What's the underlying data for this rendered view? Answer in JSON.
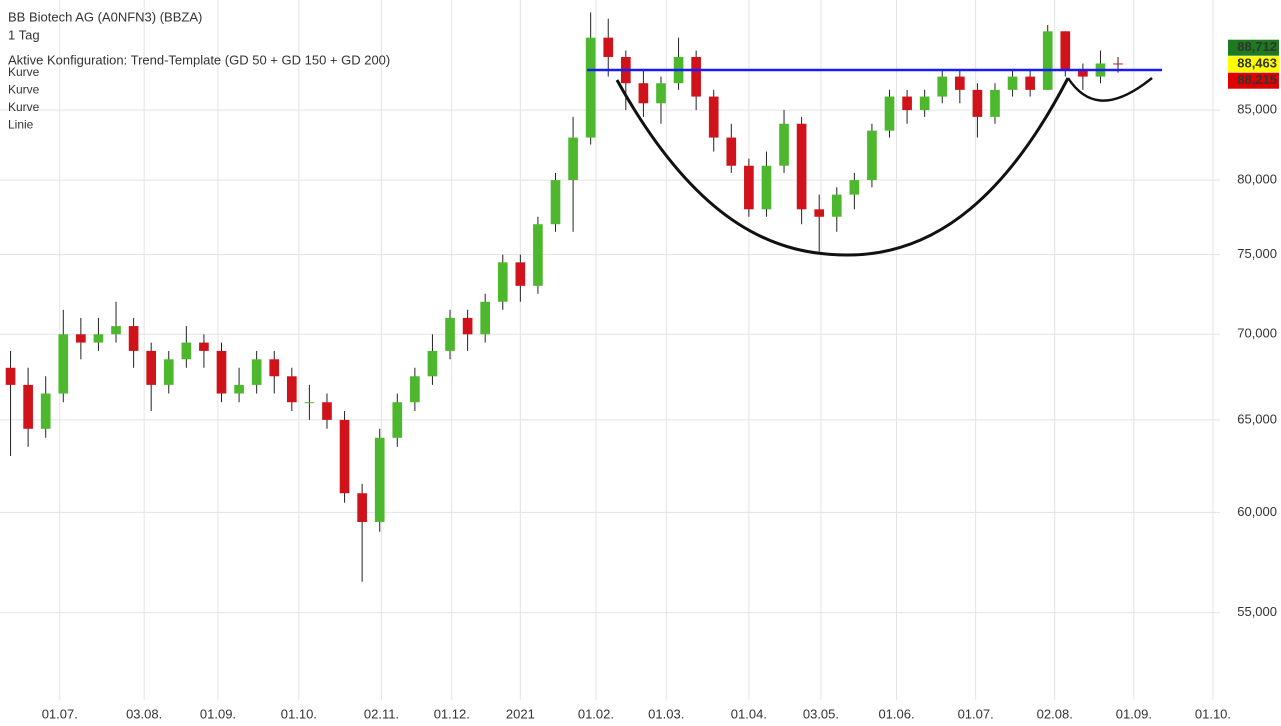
{
  "chart_data": {
    "type": "candlestick",
    "title": "BB Biotech AG (A0NFN3) (BBZA)",
    "subtitle": "1 Tag",
    "config_label": "Aktive Konfiguration: Trend-Template (GD 50 + GD 150 + GD 200)",
    "legend": [
      {
        "name": "Kurve",
        "color": "#000000"
      },
      {
        "name": "Kurve",
        "color": "#000000"
      },
      {
        "name": "Kurve",
        "color": "#000000"
      },
      {
        "name": "Linie",
        "color": "#1a1aff"
      }
    ],
    "log_scale": true,
    "grid": true,
    "up_color": "#4db82e",
    "down_color": "#d0131b",
    "categories": [
      null,
      null,
      null,
      null,
      null,
      null,
      null,
      null,
      null,
      null,
      null,
      null,
      null,
      null,
      null,
      null,
      null,
      null,
      null,
      null,
      null,
      null,
      null,
      null,
      null,
      null,
      null,
      null,
      null,
      null,
      null,
      null,
      null,
      null,
      null,
      null,
      null,
      null,
      null,
      null,
      null,
      null,
      null,
      null,
      null,
      null,
      null,
      null,
      null,
      null,
      null,
      null,
      null,
      null,
      null,
      null,
      null,
      null,
      null,
      null,
      null,
      null,
      null,
      null
    ],
    "open": [
      68000,
      67000,
      64500,
      66500,
      70000,
      69500,
      70000,
      70500,
      69000,
      67000,
      68500,
      69500,
      69000,
      66500,
      67000,
      68500,
      67500,
      66000,
      66000,
      65000,
      61000,
      59500,
      64000,
      66000,
      67500,
      69000,
      71000,
      70000,
      72000,
      74500,
      73000,
      77000,
      80000,
      83000,
      90500,
      89000,
      87000,
      85500,
      87000,
      89000,
      86000,
      83000,
      81000,
      78000,
      81000,
      84000,
      78000,
      77500,
      79000,
      80000,
      83500,
      86000,
      85000,
      86000,
      87500,
      86500,
      84500,
      86500,
      87500,
      86500,
      91000,
      88000,
      87500,
      88500
    ],
    "high": [
      69000,
      68000,
      67500,
      71500,
      71000,
      71000,
      72000,
      71000,
      69500,
      69000,
      70500,
      70000,
      69500,
      68000,
      69000,
      69000,
      68000,
      67000,
      66500,
      65500,
      61500,
      64500,
      66500,
      68000,
      70000,
      71500,
      71500,
      72500,
      75000,
      75000,
      77500,
      80500,
      84500,
      92500,
      92000,
      89500,
      88000,
      87500,
      90500,
      89500,
      86500,
      84000,
      81500,
      82000,
      85000,
      84500,
      79000,
      79500,
      80500,
      84000,
      86500,
      86500,
      86500,
      88000,
      88000,
      87000,
      87000,
      88000,
      88000,
      91500,
      91000,
      88500,
      89500,
      89000
    ],
    "low": [
      63000,
      63500,
      64000,
      66000,
      68500,
      69000,
      69500,
      68000,
      65500,
      66500,
      68000,
      68000,
      66000,
      66000,
      66500,
      66500,
      65500,
      65000,
      64500,
      60500,
      56500,
      59000,
      63500,
      65500,
      67000,
      68500,
      69000,
      69500,
      71500,
      72000,
      72500,
      76500,
      76500,
      82500,
      87500,
      85000,
      84500,
      84000,
      86500,
      85000,
      82000,
      80500,
      77500,
      77500,
      80500,
      77000,
      75200,
      76500,
      78000,
      79500,
      83000,
      84000,
      84500,
      85500,
      85500,
      83000,
      84000,
      86000,
      86000,
      86500,
      87500,
      86500,
      87000,
      87800
    ],
    "close": [
      67000,
      64500,
      66500,
      70000,
      69500,
      70000,
      70500,
      69000,
      67000,
      68500,
      69500,
      69000,
      66500,
      67000,
      68500,
      67500,
      66000,
      66000,
      65000,
      61000,
      59500,
      64000,
      66000,
      67500,
      69000,
      71000,
      70000,
      72000,
      74500,
      73000,
      77000,
      80000,
      83000,
      90500,
      89000,
      87000,
      85500,
      87000,
      89000,
      86000,
      83000,
      81000,
      78000,
      81000,
      84000,
      78000,
      77500,
      79000,
      80000,
      83500,
      86000,
      85000,
      86000,
      87500,
      86500,
      84500,
      86500,
      87500,
      86500,
      91000,
      88000,
      87500,
      88500,
      88463
    ],
    "xlim": [
      -0.6,
      68.8
    ],
    "xticks": [
      {
        "value": 2.8,
        "label": "01.07."
      },
      {
        "value": 7.6,
        "label": "03.08."
      },
      {
        "value": 11.8,
        "label": "01.09."
      },
      {
        "value": 16.4,
        "label": "01.10."
      },
      {
        "value": 21.1,
        "label": "02.11."
      },
      {
        "value": 25.1,
        "label": "01.12."
      },
      {
        "value": 29.0,
        "label": "2021"
      },
      {
        "value": 33.3,
        "label": "01.02."
      },
      {
        "value": 37.3,
        "label": "01.03."
      },
      {
        "value": 42.0,
        "label": "01.04."
      },
      {
        "value": 46.1,
        "label": "03.05."
      },
      {
        "value": 50.4,
        "label": "01.06."
      },
      {
        "value": 54.9,
        "label": "01.07."
      },
      {
        "value": 59.4,
        "label": "02.08."
      },
      {
        "value": 63.9,
        "label": "01.09."
      },
      {
        "value": 68.4,
        "label": "01.10."
      }
    ],
    "ylim": [
      51000,
      93500
    ],
    "yticks": [
      {
        "value": 55000,
        "label": "55,000"
      },
      {
        "value": 60000,
        "label": "60,000"
      },
      {
        "value": 65000,
        "label": "65,000"
      },
      {
        "value": 70000,
        "label": "70,000"
      },
      {
        "value": 75000,
        "label": "75,000"
      },
      {
        "value": 80000,
        "label": "80,000"
      },
      {
        "value": 85000,
        "label": "85,000"
      }
    ],
    "price_tags": [
      {
        "value": 88712,
        "label": "88,712",
        "color": "#1e7a1e",
        "text_color": "#ffffff"
      },
      {
        "value": 88463,
        "label": "88,463",
        "color": "#ffff00",
        "text_color": "#000000"
      },
      {
        "value": 88215,
        "label": "88,215",
        "color": "#e00000",
        "text_color": "#ffffff"
      }
    ],
    "resistance_line": {
      "value": 88000,
      "x_start": 32.8,
      "x_end": 65.5,
      "color": "#1a1aff"
    }
  }
}
